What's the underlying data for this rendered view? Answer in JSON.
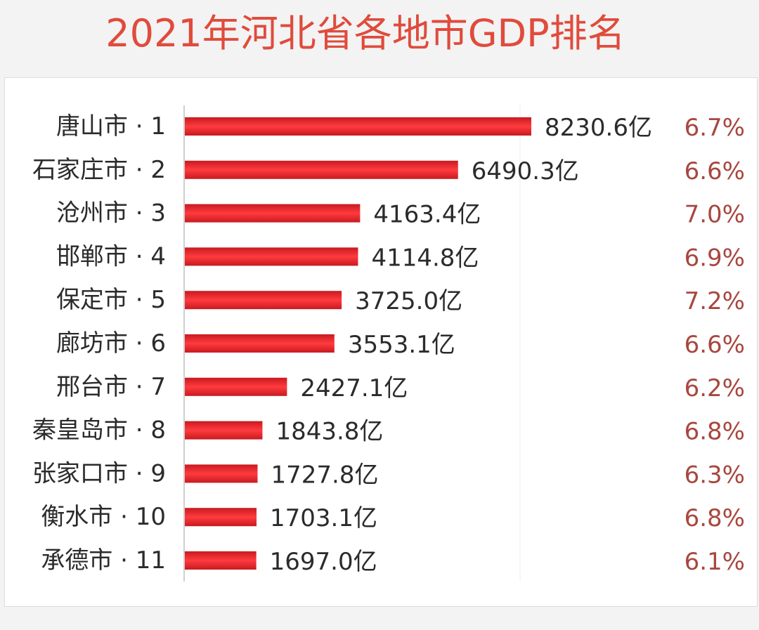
{
  "title": "2021年河北省各地市GDP排名",
  "chart_data": {
    "type": "bar",
    "orientation": "horizontal",
    "title": "2021年河北省各地市GDP排名",
    "categories": [
      "唐山市 · 1",
      "石家庄市 · 2",
      "沧州市 · 3",
      "邯郸市 · 4",
      "保定市 · 5",
      "廊坊市 · 6",
      "邢台市 · 7",
      "秦皇岛市 · 8",
      "张家口市 · 9",
      "衡水市 · 10",
      "承德市 · 11"
    ],
    "values": [
      8230.6,
      6490.3,
      4163.4,
      4114.8,
      3725.0,
      3553.1,
      2427.1,
      1843.8,
      1727.8,
      1703.1,
      1697.0
    ],
    "value_labels": [
      "8230.6亿",
      "6490.3亿",
      "4163.4亿",
      "4114.8亿",
      "3725.0亿",
      "3553.1亿",
      "2427.1亿",
      "1843.8亿",
      "1727.8亿",
      "1703.1亿",
      "1697.0亿"
    ],
    "growth_labels": [
      "6.7%",
      "6.6%",
      "7.0%",
      "6.9%",
      "7.2%",
      "6.6%",
      "6.2%",
      "6.8%",
      "6.3%",
      "6.8%",
      "6.1%"
    ],
    "bar_color": "#e8212a",
    "growth_color": "#a8473f",
    "grid": true,
    "legend": "none"
  }
}
